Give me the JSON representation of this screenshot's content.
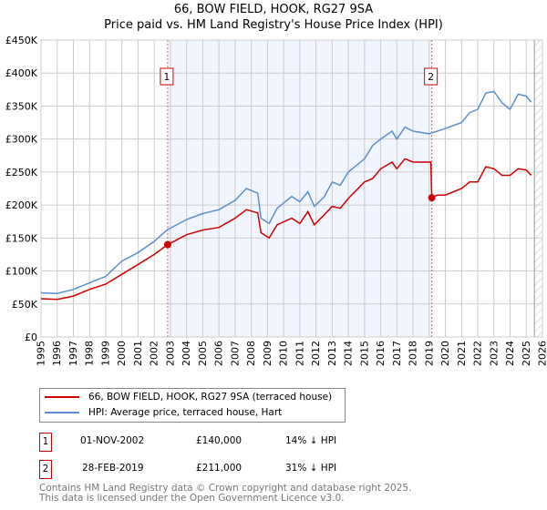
{
  "chart_data": {
    "type": "line",
    "title": "66, BOW FIELD, HOOK, RG27 9SA",
    "subtitle": "Price paid vs. HM Land Registry's House Price Index (HPI)",
    "xlim": [
      1995,
      2026
    ],
    "ylim": [
      0,
      450000
    ],
    "x_ticks": [
      "1995",
      "1996",
      "1997",
      "1998",
      "1999",
      "2000",
      "2001",
      "2002",
      "2003",
      "2004",
      "2005",
      "2006",
      "2007",
      "2008",
      "2009",
      "2010",
      "2011",
      "2012",
      "2013",
      "2014",
      "2015",
      "2016",
      "2017",
      "2018",
      "2019",
      "2020",
      "2021",
      "2022",
      "2023",
      "2024",
      "2025",
      "2026"
    ],
    "y_ticks": [
      {
        "v": 0,
        "l": "£0"
      },
      {
        "v": 50000,
        "l": "£50K"
      },
      {
        "v": 100000,
        "l": "£100K"
      },
      {
        "v": 150000,
        "l": "£150K"
      },
      {
        "v": 200000,
        "l": "£200K"
      },
      {
        "v": 250000,
        "l": "£250K"
      },
      {
        "v": 300000,
        "l": "£300K"
      },
      {
        "v": 350000,
        "l": "£350K"
      },
      {
        "v": 400000,
        "l": "£400K"
      },
      {
        "v": 450000,
        "l": "£450K"
      }
    ],
    "grid": true,
    "shaded_range": [
      2002.83,
      2019.16
    ],
    "forecast_hatch_from": 2025.5,
    "series": [
      {
        "name": "66, BOW FIELD, HOOK, RG27 9SA (terraced house)",
        "color": "#cc0000",
        "x": [
          1995,
          1996,
          1997,
          1998,
          1999,
          2000,
          2001,
          2002,
          2002.83,
          2003,
          2004,
          2005,
          2006,
          2007,
          2007.7,
          2008.4,
          2008.6,
          2009.1,
          2009.6,
          2010.5,
          2011,
          2011.5,
          2011.9,
          2012.5,
          2013,
          2013.5,
          2014,
          2015,
          2015.5,
          2016,
          2016.7,
          2017,
          2017.5,
          2018,
          2019.1,
          2019.16,
          2019.5,
          2020,
          2021,
          2021.5,
          2022,
          2022.5,
          2023,
          2023.5,
          2024,
          2024.5,
          2025,
          2025.3
        ],
        "y": [
          58000,
          57000,
          62000,
          72000,
          80000,
          95000,
          110000,
          125000,
          140000,
          142000,
          155000,
          162000,
          166000,
          180000,
          193000,
          188000,
          158000,
          150000,
          170000,
          180000,
          172000,
          190000,
          170000,
          185000,
          198000,
          195000,
          210000,
          235000,
          240000,
          255000,
          265000,
          255000,
          270000,
          265000,
          265000,
          211000,
          215000,
          215000,
          225000,
          235000,
          235000,
          258000,
          255000,
          245000,
          245000,
          255000,
          253000,
          245000
        ]
      },
      {
        "name": "HPI: Average price, terraced house, Hart",
        "color": "#5b8fd0",
        "x": [
          1995,
          1996,
          1997,
          1998,
          1999,
          2000,
          2001,
          2002,
          2002.83,
          2003,
          2004,
          2005,
          2006,
          2007,
          2007.7,
          2008.4,
          2008.6,
          2009.1,
          2009.6,
          2010.5,
          2011,
          2011.5,
          2011.9,
          2012.5,
          2013,
          2013.5,
          2014,
          2015,
          2015.5,
          2016,
          2016.7,
          2017,
          2017.5,
          2018,
          2019,
          2019.5,
          2020,
          2021,
          2021.5,
          2022,
          2022.5,
          2023,
          2023.5,
          2024,
          2024.5,
          2025,
          2025.3
        ],
        "y": [
          67000,
          66000,
          72000,
          82000,
          92000,
          115000,
          128000,
          145000,
          163000,
          165000,
          178000,
          187000,
          193000,
          207000,
          225000,
          218000,
          180000,
          172000,
          195000,
          213000,
          205000,
          220000,
          198000,
          212000,
          235000,
          230000,
          250000,
          270000,
          290000,
          300000,
          312000,
          300000,
          318000,
          312000,
          308000,
          312000,
          316000,
          325000,
          340000,
          345000,
          370000,
          372000,
          355000,
          345000,
          368000,
          365000,
          356000
        ]
      }
    ],
    "markers": [
      {
        "label": "1",
        "x": 2002.83,
        "y": 140000
      },
      {
        "label": "2",
        "x": 2019.16,
        "y": 211000
      }
    ]
  },
  "legend": {
    "items": [
      "66, BOW FIELD, HOOK, RG27 9SA (terraced house)",
      "HPI: Average price, terraced house, Hart"
    ]
  },
  "transactions": [
    {
      "num": "1",
      "date": "01-NOV-2002",
      "price": "£140,000",
      "diff": "14% ↓ HPI"
    },
    {
      "num": "2",
      "date": "28-FEB-2019",
      "price": "£211,000",
      "diff": "31% ↓ HPI"
    }
  ],
  "footer": {
    "line1": "Contains HM Land Registry data © Crown copyright and database right 2025.",
    "line2": "This data is licensed under the Open Government Licence v3.0."
  }
}
